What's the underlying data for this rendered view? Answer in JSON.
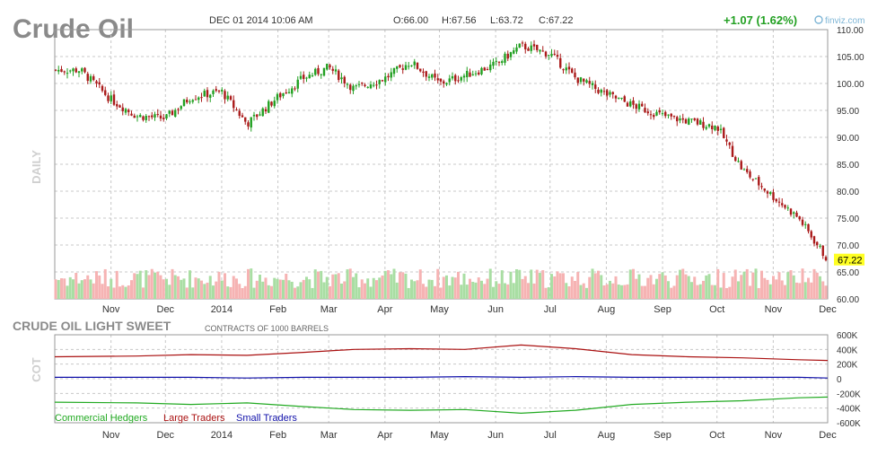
{
  "title": "Crude Oil",
  "header": {
    "datetime": "DEC 01 2014 10:06 AM",
    "open": "O:66.00",
    "high": "H:67.56",
    "low": "L:63.72",
    "close": "C:67.22",
    "change": "+1.07 (1.62%)",
    "brand": "finviz.com"
  },
  "price_panel": {
    "side_label": "DAILY",
    "last_price": "67.22",
    "y_ticks": [
      "110.00",
      "105.00",
      "100.00",
      "95.00",
      "90.00",
      "85.00",
      "80.00",
      "75.00",
      "70.00",
      "65.00",
      "60.00"
    ]
  },
  "x_ticks": [
    "Nov",
    "Dec",
    "2014",
    "Feb",
    "Mar",
    "Apr",
    "May",
    "Jun",
    "Jul",
    "Aug",
    "Sep",
    "Oct",
    "Nov",
    "Dec"
  ],
  "cot_panel": {
    "title": "CRUDE OIL LIGHT SWEET",
    "subtitle": "CONTRACTS OF 1000 BARRELS",
    "side_label": "COT",
    "y_ticks": [
      "600K",
      "400K",
      "200K",
      "0",
      "-200K",
      "-400K",
      "-600K"
    ],
    "legend": [
      {
        "label": "Commercial Hedgers",
        "color": "#22aa22"
      },
      {
        "label": "Large Traders",
        "color": "#aa1111"
      },
      {
        "label": "Small Traders",
        "color": "#1111aa"
      }
    ]
  },
  "colors": {
    "up": "#22a022",
    "down": "#aa1a1a",
    "vol_up": "#a9dea3",
    "vol_down": "#f6b3b3",
    "grid": "#c8c8c8",
    "last_price_bg": "#ffff22"
  },
  "chart_data": [
    {
      "type": "candlestick",
      "title": "Crude Oil",
      "period": "daily",
      "x_range": [
        "2013-10",
        "2014-12-01"
      ],
      "ylim": [
        60,
        110
      ],
      "series": [
        {
          "name": "Close",
          "x": [
            "2013-10-15",
            "2013-11-01",
            "2013-11-15",
            "2013-12-01",
            "2013-12-15",
            "2014-01-01",
            "2014-01-15",
            "2014-02-01",
            "2014-02-15",
            "2014-03-01",
            "2014-03-15",
            "2014-04-01",
            "2014-04-15",
            "2014-05-01",
            "2014-05-15",
            "2014-06-01",
            "2014-06-15",
            "2014-07-01",
            "2014-07-15",
            "2014-08-01",
            "2014-08-15",
            "2014-09-01",
            "2014-09-15",
            "2014-10-01",
            "2014-10-15",
            "2014-11-01",
            "2014-11-15",
            "2014-12-01"
          ],
          "values": [
            102.5,
            97,
            94,
            93.5,
            97.5,
            98.5,
            92.5,
            97.5,
            101,
            103,
            99,
            101,
            104,
            100,
            101.5,
            103.5,
            107,
            105.5,
            101,
            98,
            96,
            94,
            93,
            92,
            84,
            79,
            75,
            67.22
          ]
        }
      ],
      "last": 67.22
    },
    {
      "type": "line",
      "title": "CRUDE OIL LIGHT SWEET",
      "subtitle": "CONTRACTS OF 1000 BARRELS",
      "ylim": [
        -600000,
        600000
      ],
      "x": [
        "2013-10",
        "2013-11",
        "2013-12",
        "2014-01",
        "2014-02",
        "2014-03",
        "2014-04",
        "2014-05",
        "2014-06",
        "2014-07",
        "2014-08",
        "2014-09",
        "2014-10",
        "2014-11",
        "2014-12"
      ],
      "series": [
        {
          "name": "Commercial Hedgers",
          "values": [
            -320000,
            -330000,
            -350000,
            -330000,
            -380000,
            -420000,
            -430000,
            -420000,
            -470000,
            -430000,
            -350000,
            -320000,
            -300000,
            -260000,
            -250000
          ]
        },
        {
          "name": "Large Traders",
          "values": [
            300000,
            310000,
            330000,
            320000,
            360000,
            400000,
            410000,
            400000,
            460000,
            410000,
            330000,
            300000,
            285000,
            260000,
            250000
          ]
        },
        {
          "name": "Small Traders",
          "values": [
            20000,
            20000,
            20000,
            10000,
            20000,
            20000,
            20000,
            30000,
            20000,
            30000,
            20000,
            20000,
            20000,
            20000,
            10000
          ]
        }
      ]
    }
  ]
}
